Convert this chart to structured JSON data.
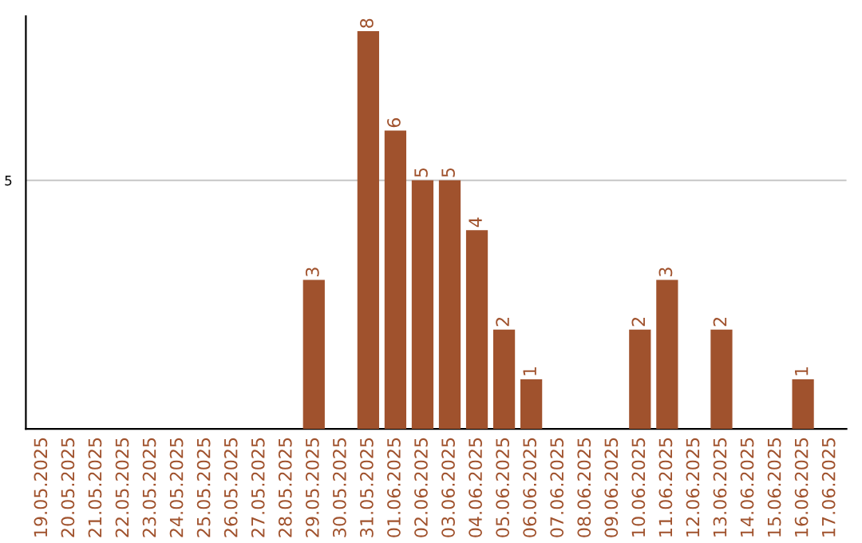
{
  "chart_data": {
    "type": "bar",
    "categories": [
      "19.05.2025",
      "20.05.2025",
      "21.05.2025",
      "22.05.2025",
      "23.05.2025",
      "24.05.2025",
      "25.05.2025",
      "26.05.2025",
      "27.05.2025",
      "28.05.2025",
      "29.05.2025",
      "30.05.2025",
      "31.05.2025",
      "01.06.2025",
      "02.06.2025",
      "03.06.2025",
      "04.06.2025",
      "05.06.2025",
      "06.06.2025",
      "07.06.2025",
      "08.06.2025",
      "09.06.2025",
      "10.06.2025",
      "11.06.2025",
      "12.06.2025",
      "13.06.2025",
      "14.06.2025",
      "15.06.2025",
      "16.06.2025",
      "17.06.2025"
    ],
    "series": [
      {
        "color": "#a0522d",
        "values": [
          0,
          0,
          0,
          0,
          0,
          0,
          0,
          0,
          0,
          0,
          3,
          0,
          8,
          6,
          5,
          5,
          4,
          2,
          1,
          0,
          0,
          0,
          2,
          3,
          0,
          2,
          0,
          0,
          1,
          0
        ],
        "value_labels": [
          null,
          null,
          null,
          null,
          null,
          null,
          null,
          null,
          null,
          null,
          "3",
          null,
          "8",
          "6",
          "5",
          "5",
          "4",
          "2",
          "1",
          null,
          null,
          null,
          "2",
          "3",
          null,
          "2",
          null,
          null,
          "1",
          null
        ]
      }
    ],
    "ylim": [
      0,
      8.3
    ],
    "yticks": [
      {
        "value": 0,
        "label": null
      },
      5
    ],
    "grid": "y",
    "legend": false
  }
}
